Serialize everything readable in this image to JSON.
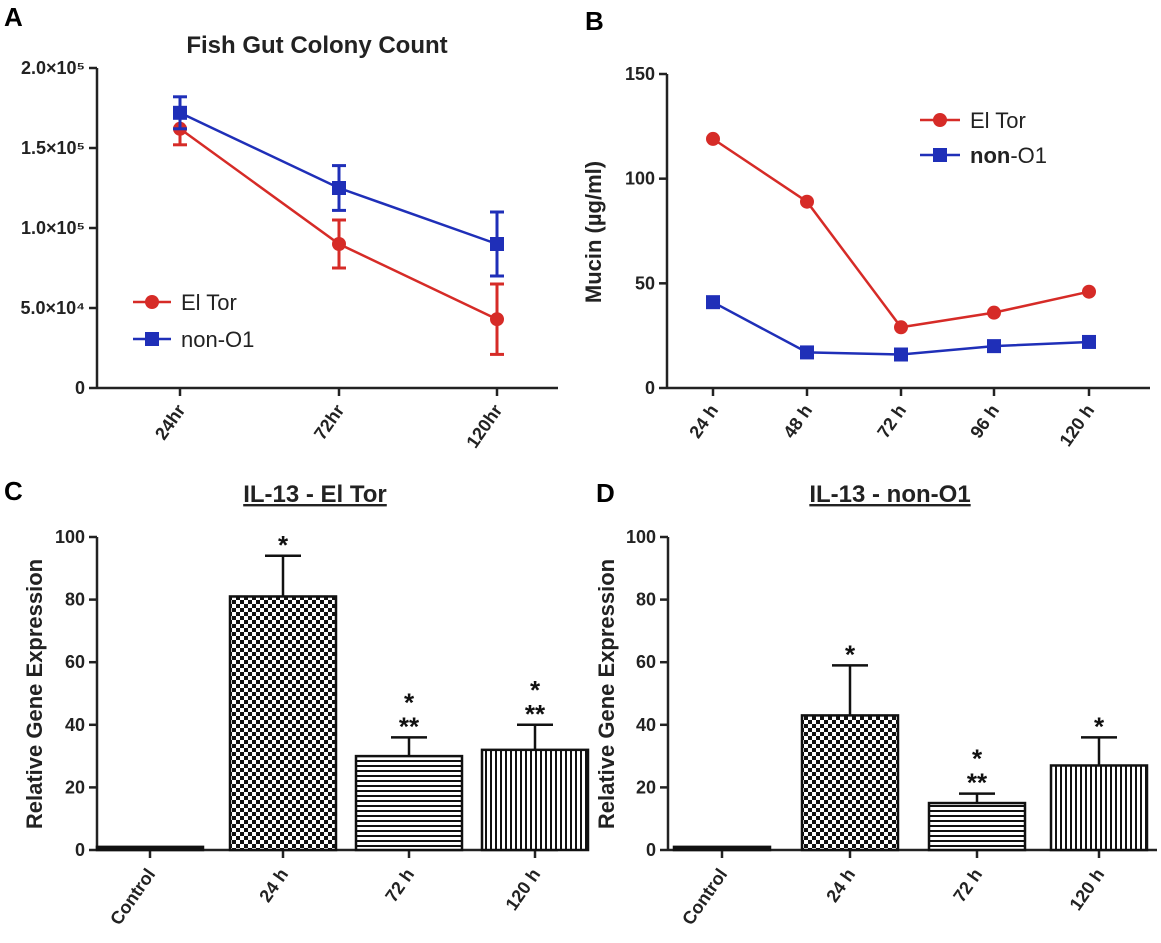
{
  "chart_data": [
    {
      "panel": "A",
      "type": "line",
      "title": "Fish Gut Colony Count",
      "categories": [
        "24hr",
        "72hr",
        "120hr"
      ],
      "yticks": [
        "0",
        "5.0×10⁴",
        "1.0×10⁵",
        "1.5×10⁵",
        "2.0×10⁵"
      ],
      "ylim": [
        0,
        200000
      ],
      "series": [
        {
          "name": "El Tor",
          "color": "#d62b27",
          "marker": "circle",
          "values": [
            162000,
            90000,
            43000
          ],
          "errors": [
            10000,
            15000,
            22000
          ]
        },
        {
          "name": "non-O1",
          "color": "#1f2fb8",
          "marker": "square",
          "values": [
            172000,
            125000,
            90000
          ],
          "errors": [
            10000,
            14000,
            20000
          ]
        }
      ],
      "legend_position": "lower-left"
    },
    {
      "panel": "B",
      "type": "line",
      "title": "",
      "ylabel": "Mucin (µg/ml)",
      "categories": [
        "24 h",
        "48 h",
        "72 h",
        "96 h",
        "120 h"
      ],
      "yticks": [
        "0",
        "50",
        "100",
        "150"
      ],
      "ylim": [
        0,
        150
      ],
      "series": [
        {
          "name": "El Tor",
          "color": "#d62b27",
          "marker": "circle",
          "values": [
            119,
            89,
            29,
            36,
            46
          ]
        },
        {
          "name": "non-O1",
          "color": "#1f2fb8",
          "marker": "square",
          "values": [
            41,
            17,
            16,
            20,
            22
          ]
        }
      ],
      "legend_position": "top-right"
    },
    {
      "panel": "C",
      "type": "bar",
      "title": "IL-13 - El Tor",
      "ylabel": "Relative Gene Expression",
      "categories": [
        "Control",
        "24 h",
        "72 h",
        "120 h"
      ],
      "yticks": [
        "0",
        "20",
        "40",
        "60",
        "80",
        "100"
      ],
      "ylim": [
        0,
        100
      ],
      "values": [
        1,
        81,
        30,
        32
      ],
      "errors": [
        0,
        13,
        6,
        8
      ],
      "patterns": [
        "solid",
        "checker",
        "horizontal",
        "vertical"
      ],
      "annotations": [
        "",
        "*",
        "*\n**",
        "*\n**"
      ]
    },
    {
      "panel": "D",
      "type": "bar",
      "title": "IL-13 - non-O1",
      "ylabel": "Relative Gene Expression",
      "categories": [
        "Control",
        "24 h",
        "72 h",
        "120 h"
      ],
      "yticks": [
        "0",
        "20",
        "40",
        "60",
        "80",
        "100"
      ],
      "ylim": [
        0,
        100
      ],
      "values": [
        1,
        43,
        15,
        27
      ],
      "errors": [
        0,
        16,
        3,
        9
      ],
      "patterns": [
        "solid",
        "checker",
        "horizontal",
        "vertical"
      ],
      "annotations": [
        "",
        "*",
        "*\n**",
        "*"
      ]
    }
  ],
  "panel_labels": [
    "A",
    "B",
    "C",
    "D"
  ],
  "legend_bold_prefix": "non"
}
